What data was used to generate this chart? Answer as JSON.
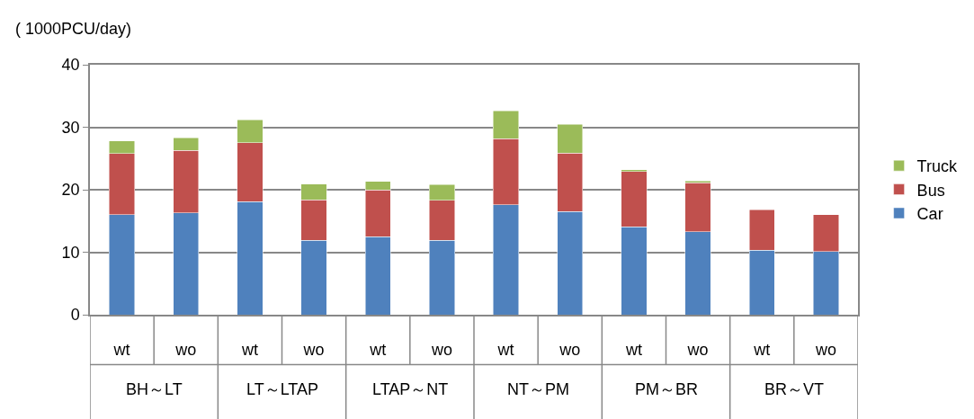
{
  "chart_data": {
    "type": "bar",
    "stacked": true,
    "ylabel": "( 1000PCU/day)",
    "categories": [
      "wt",
      "wo",
      "wt",
      "wo",
      "wt",
      "wo",
      "wt",
      "wo",
      "wt",
      "wo",
      "wt",
      "wo"
    ],
    "series": [
      {
        "name": "Car",
        "color": "#4f81bd",
        "values": [
          16.0,
          16.3,
          18.1,
          11.9,
          12.5,
          11.9,
          17.6,
          16.5,
          14.1,
          13.3,
          10.3,
          10.1
        ]
      },
      {
        "name": "Bus",
        "color": "#c0504d",
        "values": [
          9.8,
          10.0,
          9.4,
          6.5,
          7.5,
          6.4,
          10.6,
          9.4,
          8.8,
          7.8,
          6.5,
          5.9
        ]
      },
      {
        "name": "Truck",
        "color": "#9bbb59",
        "values": [
          2.0,
          2.0,
          3.7,
          2.5,
          1.3,
          2.5,
          4.4,
          4.6,
          0.3,
          0.3,
          null,
          null
        ]
      }
    ],
    "annotations": [
      "BH～LT",
      "LT～LTAP",
      "LTAP～NT",
      "NT～PM",
      "PM～BR",
      "BR～VT"
    ],
    "ylim": [
      0,
      40
    ],
    "yticks": [
      0,
      10,
      20,
      30,
      40
    ],
    "grid": "y",
    "legend": "right"
  }
}
